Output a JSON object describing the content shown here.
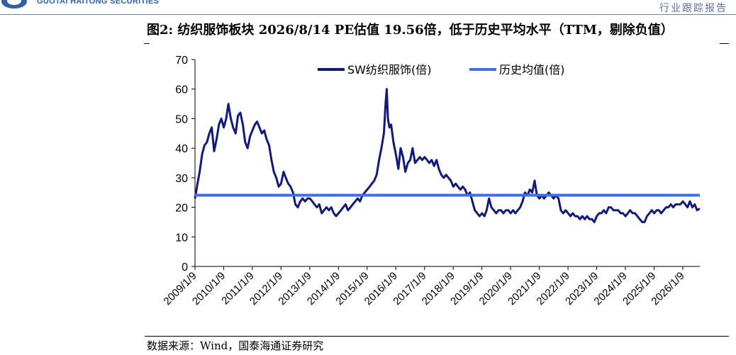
{
  "header": {
    "brand_name": "GUOTAI HAITONG SECURITIES",
    "report_type": "行业跟踪报告",
    "logo_icon": "gtht-logo-icon",
    "brand_color": "#2f5fa8"
  },
  "figure": {
    "title": "图2:  纺织服饰板块 2026/8/14 PE估值 19.56倍，低于历史平均水平（TTM，剔除负值）",
    "source": "数据来源：Wind，国泰海通证券研究"
  },
  "chart_data": {
    "type": "line",
    "title": "",
    "xlabel": "",
    "ylabel": "",
    "ylim": [
      0,
      70
    ],
    "yticks": [
      0,
      10,
      20,
      30,
      40,
      50,
      60,
      70
    ],
    "xlim": [
      "2009/1/9",
      "2026/8/14"
    ],
    "xticks": [
      "2009/1/9",
      "2010/1/9",
      "2011/1/9",
      "2012/1/9",
      "2013/1/9",
      "2014/1/9",
      "2015/1/9",
      "2016/1/9",
      "2017/1/9",
      "2018/1/9",
      "2019/1/9",
      "2020/1/9",
      "2021/1/9",
      "2022/1/9",
      "2023/1/9",
      "2024/1/9",
      "2025/1/9",
      "2026/1/9"
    ],
    "grid": false,
    "legend_position": "top",
    "series": [
      {
        "name": "SW纺织服饰(倍)",
        "color": "#0f1a7a",
        "points": [
          [
            "2009/01/09",
            23
          ],
          [
            "2009/02/10",
            28
          ],
          [
            "2009/03/10",
            32
          ],
          [
            "2009/04/10",
            38
          ],
          [
            "2009/05/10",
            41
          ],
          [
            "2009/06/10",
            42
          ],
          [
            "2009/07/10",
            45
          ],
          [
            "2009/08/10",
            47
          ],
          [
            "2009/09/10",
            39
          ],
          [
            "2009/10/10",
            43
          ],
          [
            "2009/11/10",
            48
          ],
          [
            "2009/12/10",
            50
          ],
          [
            "2010/01/10",
            47
          ],
          [
            "2010/02/10",
            50
          ],
          [
            "2010/03/10",
            55
          ],
          [
            "2010/04/10",
            50
          ],
          [
            "2010/05/10",
            47
          ],
          [
            "2010/06/10",
            45
          ],
          [
            "2010/07/10",
            51
          ],
          [
            "2010/08/10",
            52
          ],
          [
            "2010/09/10",
            48
          ],
          [
            "2010/10/10",
            42
          ],
          [
            "2010/11/10",
            40
          ],
          [
            "2010/12/10",
            44
          ],
          [
            "2011/01/10",
            46
          ],
          [
            "2011/02/10",
            48
          ],
          [
            "2011/03/10",
            49
          ],
          [
            "2011/04/10",
            47
          ],
          [
            "2011/05/10",
            45
          ],
          [
            "2011/06/10",
            46
          ],
          [
            "2011/07/10",
            43
          ],
          [
            "2011/08/10",
            41
          ],
          [
            "2011/09/10",
            36
          ],
          [
            "2011/10/10",
            32
          ],
          [
            "2011/11/10",
            30
          ],
          [
            "2011/12/10",
            27
          ],
          [
            "2012/01/10",
            28
          ],
          [
            "2012/02/10",
            32
          ],
          [
            "2012/03/10",
            30
          ],
          [
            "2012/04/10",
            28
          ],
          [
            "2012/05/10",
            27
          ],
          [
            "2012/06/10",
            25
          ],
          [
            "2012/07/10",
            21
          ],
          [
            "2012/08/10",
            20
          ],
          [
            "2012/09/10",
            22
          ],
          [
            "2012/10/10",
            23
          ],
          [
            "2012/11/10",
            22
          ],
          [
            "2012/12/10",
            23
          ],
          [
            "2013/01/10",
            23
          ],
          [
            "2013/02/10",
            22
          ],
          [
            "2013/03/10",
            21
          ],
          [
            "2013/04/10",
            20
          ],
          [
            "2013/05/10",
            21
          ],
          [
            "2013/06/10",
            18
          ],
          [
            "2013/07/10",
            19
          ],
          [
            "2013/08/10",
            20
          ],
          [
            "2013/09/10",
            19
          ],
          [
            "2013/10/10",
            20
          ],
          [
            "2013/11/10",
            18
          ],
          [
            "2013/12/10",
            17
          ],
          [
            "2014/01/10",
            18
          ],
          [
            "2014/02/10",
            19
          ],
          [
            "2014/03/10",
            20
          ],
          [
            "2014/04/10",
            21
          ],
          [
            "2014/05/10",
            19
          ],
          [
            "2014/06/10",
            20
          ],
          [
            "2014/07/10",
            21
          ],
          [
            "2014/08/10",
            22
          ],
          [
            "2014/09/10",
            23
          ],
          [
            "2014/10/10",
            22
          ],
          [
            "2014/11/10",
            24
          ],
          [
            "2014/12/10",
            25
          ],
          [
            "2015/01/10",
            26
          ],
          [
            "2015/02/10",
            27
          ],
          [
            "2015/03/10",
            28
          ],
          [
            "2015/04/10",
            29
          ],
          [
            "2015/05/10",
            31
          ],
          [
            "2015/06/10",
            36
          ],
          [
            "2015/07/10",
            40
          ],
          [
            "2015/08/10",
            45
          ],
          [
            "2015/09/01",
            55
          ],
          [
            "2015/09/15",
            60
          ],
          [
            "2015/10/01",
            50
          ],
          [
            "2015/10/20",
            47
          ],
          [
            "2015/11/10",
            48
          ],
          [
            "2015/12/10",
            42
          ],
          [
            "2016/01/10",
            38
          ],
          [
            "2016/02/10",
            33
          ],
          [
            "2016/03/10",
            40
          ],
          [
            "2016/04/10",
            37
          ],
          [
            "2016/05/10",
            32
          ],
          [
            "2016/06/10",
            35
          ],
          [
            "2016/07/10",
            36
          ],
          [
            "2016/08/10",
            40
          ],
          [
            "2016/09/10",
            35
          ],
          [
            "2016/10/10",
            36
          ],
          [
            "2016/11/10",
            37
          ],
          [
            "2016/12/10",
            36
          ],
          [
            "2017/01/10",
            37
          ],
          [
            "2017/02/10",
            36
          ],
          [
            "2017/03/10",
            35
          ],
          [
            "2017/04/10",
            36
          ],
          [
            "2017/05/10",
            34
          ],
          [
            "2017/06/10",
            36
          ],
          [
            "2017/07/10",
            33
          ],
          [
            "2017/08/10",
            31
          ],
          [
            "2017/09/10",
            30
          ],
          [
            "2017/10/10",
            31
          ],
          [
            "2017/11/10",
            30
          ],
          [
            "2017/12/10",
            29
          ],
          [
            "2018/01/10",
            27
          ],
          [
            "2018/02/10",
            28
          ],
          [
            "2018/03/10",
            27
          ],
          [
            "2018/04/10",
            26
          ],
          [
            "2018/05/10",
            27
          ],
          [
            "2018/06/10",
            26
          ],
          [
            "2018/07/10",
            24
          ],
          [
            "2018/08/10",
            25
          ],
          [
            "2018/09/10",
            22
          ],
          [
            "2018/10/10",
            19
          ],
          [
            "2018/11/10",
            18
          ],
          [
            "2018/12/10",
            17
          ],
          [
            "2019/01/10",
            18
          ],
          [
            "2019/02/10",
            17
          ],
          [
            "2019/03/10",
            19
          ],
          [
            "2019/04/10",
            23
          ],
          [
            "2019/05/10",
            20
          ],
          [
            "2019/06/10",
            19
          ],
          [
            "2019/07/10",
            18
          ],
          [
            "2019/08/10",
            19
          ],
          [
            "2019/09/10",
            19
          ],
          [
            "2019/10/10",
            18
          ],
          [
            "2019/11/10",
            19
          ],
          [
            "2019/12/10",
            19
          ],
          [
            "2020/01/10",
            18
          ],
          [
            "2020/02/10",
            19
          ],
          [
            "2020/03/10",
            18
          ],
          [
            "2020/04/10",
            19
          ],
          [
            "2020/05/10",
            20
          ],
          [
            "2020/06/10",
            22
          ],
          [
            "2020/07/10",
            25
          ],
          [
            "2020/08/10",
            24
          ],
          [
            "2020/09/10",
            26
          ],
          [
            "2020/10/10",
            25
          ],
          [
            "2020/11/10",
            29
          ],
          [
            "2020/12/10",
            24
          ],
          [
            "2021/01/10",
            23
          ],
          [
            "2021/02/10",
            24
          ],
          [
            "2021/03/10",
            23
          ],
          [
            "2021/04/10",
            24
          ],
          [
            "2021/05/10",
            25
          ],
          [
            "2021/06/10",
            24
          ],
          [
            "2021/07/10",
            23
          ],
          [
            "2021/08/10",
            24
          ],
          [
            "2021/09/10",
            23
          ],
          [
            "2021/10/10",
            19
          ],
          [
            "2021/11/10",
            18
          ],
          [
            "2021/12/10",
            19
          ],
          [
            "2022/01/10",
            18
          ],
          [
            "2022/02/10",
            17
          ],
          [
            "2022/03/10",
            18
          ],
          [
            "2022/04/10",
            17
          ],
          [
            "2022/05/10",
            17
          ],
          [
            "2022/06/10",
            16
          ],
          [
            "2022/07/10",
            17
          ],
          [
            "2022/08/10",
            16
          ],
          [
            "2022/09/10",
            17
          ],
          [
            "2022/10/10",
            16
          ],
          [
            "2022/11/10",
            16
          ],
          [
            "2022/12/10",
            15
          ],
          [
            "2023/01/10",
            17
          ],
          [
            "2023/02/10",
            18
          ],
          [
            "2023/03/10",
            18
          ],
          [
            "2023/04/10",
            19
          ],
          [
            "2023/05/10",
            18
          ],
          [
            "2023/06/10",
            20
          ],
          [
            "2023/07/10",
            20
          ],
          [
            "2023/08/10",
            19
          ],
          [
            "2023/09/10",
            19
          ],
          [
            "2023/10/10",
            19
          ],
          [
            "2023/11/10",
            18
          ],
          [
            "2023/12/10",
            18
          ],
          [
            "2024/01/10",
            17
          ],
          [
            "2024/02/10",
            18
          ],
          [
            "2024/03/10",
            19
          ],
          [
            "2024/04/10",
            18
          ],
          [
            "2024/05/10",
            18
          ],
          [
            "2024/06/10",
            17
          ],
          [
            "2024/07/10",
            16
          ],
          [
            "2024/08/10",
            15
          ],
          [
            "2024/09/10",
            15
          ],
          [
            "2024/10/10",
            17
          ],
          [
            "2024/11/10",
            18
          ],
          [
            "2024/12/10",
            19
          ],
          [
            "2025/01/10",
            18
          ],
          [
            "2025/02/10",
            19
          ],
          [
            "2025/03/10",
            19
          ],
          [
            "2025/04/10",
            18
          ],
          [
            "2025/05/10",
            19
          ],
          [
            "2025/06/10",
            20
          ],
          [
            "2025/07/10",
            20
          ],
          [
            "2025/08/10",
            21
          ],
          [
            "2025/09/10",
            20
          ],
          [
            "2025/10/10",
            21
          ],
          [
            "2025/11/10",
            21
          ],
          [
            "2025/12/10",
            21
          ],
          [
            "2026/01/10",
            22
          ],
          [
            "2026/02/10",
            21
          ],
          [
            "2026/03/10",
            20
          ],
          [
            "2026/04/10",
            22
          ],
          [
            "2026/05/10",
            20
          ],
          [
            "2026/06/10",
            21
          ],
          [
            "2026/07/10",
            19
          ],
          [
            "2026/08/14",
            19.56
          ]
        ]
      },
      {
        "name": "历史均值(倍)",
        "color": "#3f6fe8",
        "points": [
          [
            "2009/01/09",
            24.1
          ],
          [
            "2026/08/14",
            24.1
          ]
        ]
      }
    ]
  }
}
